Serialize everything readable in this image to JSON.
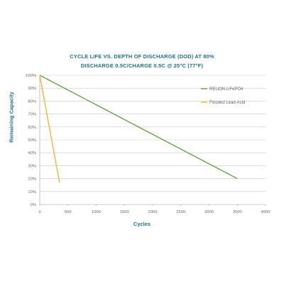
{
  "chart_data": {
    "type": "line",
    "title_line1": "CYCLE LIFE VS. DEPTH OF DISCHARGE (DOD) AT 80%",
    "title_line2": "DISCHARGE 0.5C/CHARGE 0.5C @ 25°C (77°F)",
    "xlabel": "Cycles",
    "ylabel": "Remaining Capacity",
    "xlim": [
      0,
      4000
    ],
    "ylim": [
      0,
      100
    ],
    "x_ticks": [
      "0",
      "500",
      "1000",
      "1500",
      "2000",
      "2500",
      "3000",
      "3500",
      "4000"
    ],
    "y_ticks": [
      "0%",
      "10%",
      "20%",
      "30%",
      "40%",
      "50%",
      "60%",
      "70%",
      "80%",
      "90%",
      "100%"
    ],
    "grid": true,
    "legend_position": "top-right",
    "series": [
      {
        "name": "RELiON LiFePO4",
        "color": "#5aa33a",
        "points": [
          [
            0,
            100
          ],
          [
            3500,
            20
          ]
        ]
      },
      {
        "name": "Flooded Lead-Acid",
        "color": "#f0b21e",
        "points": [
          [
            0,
            100
          ],
          [
            350,
            17
          ]
        ]
      }
    ]
  }
}
